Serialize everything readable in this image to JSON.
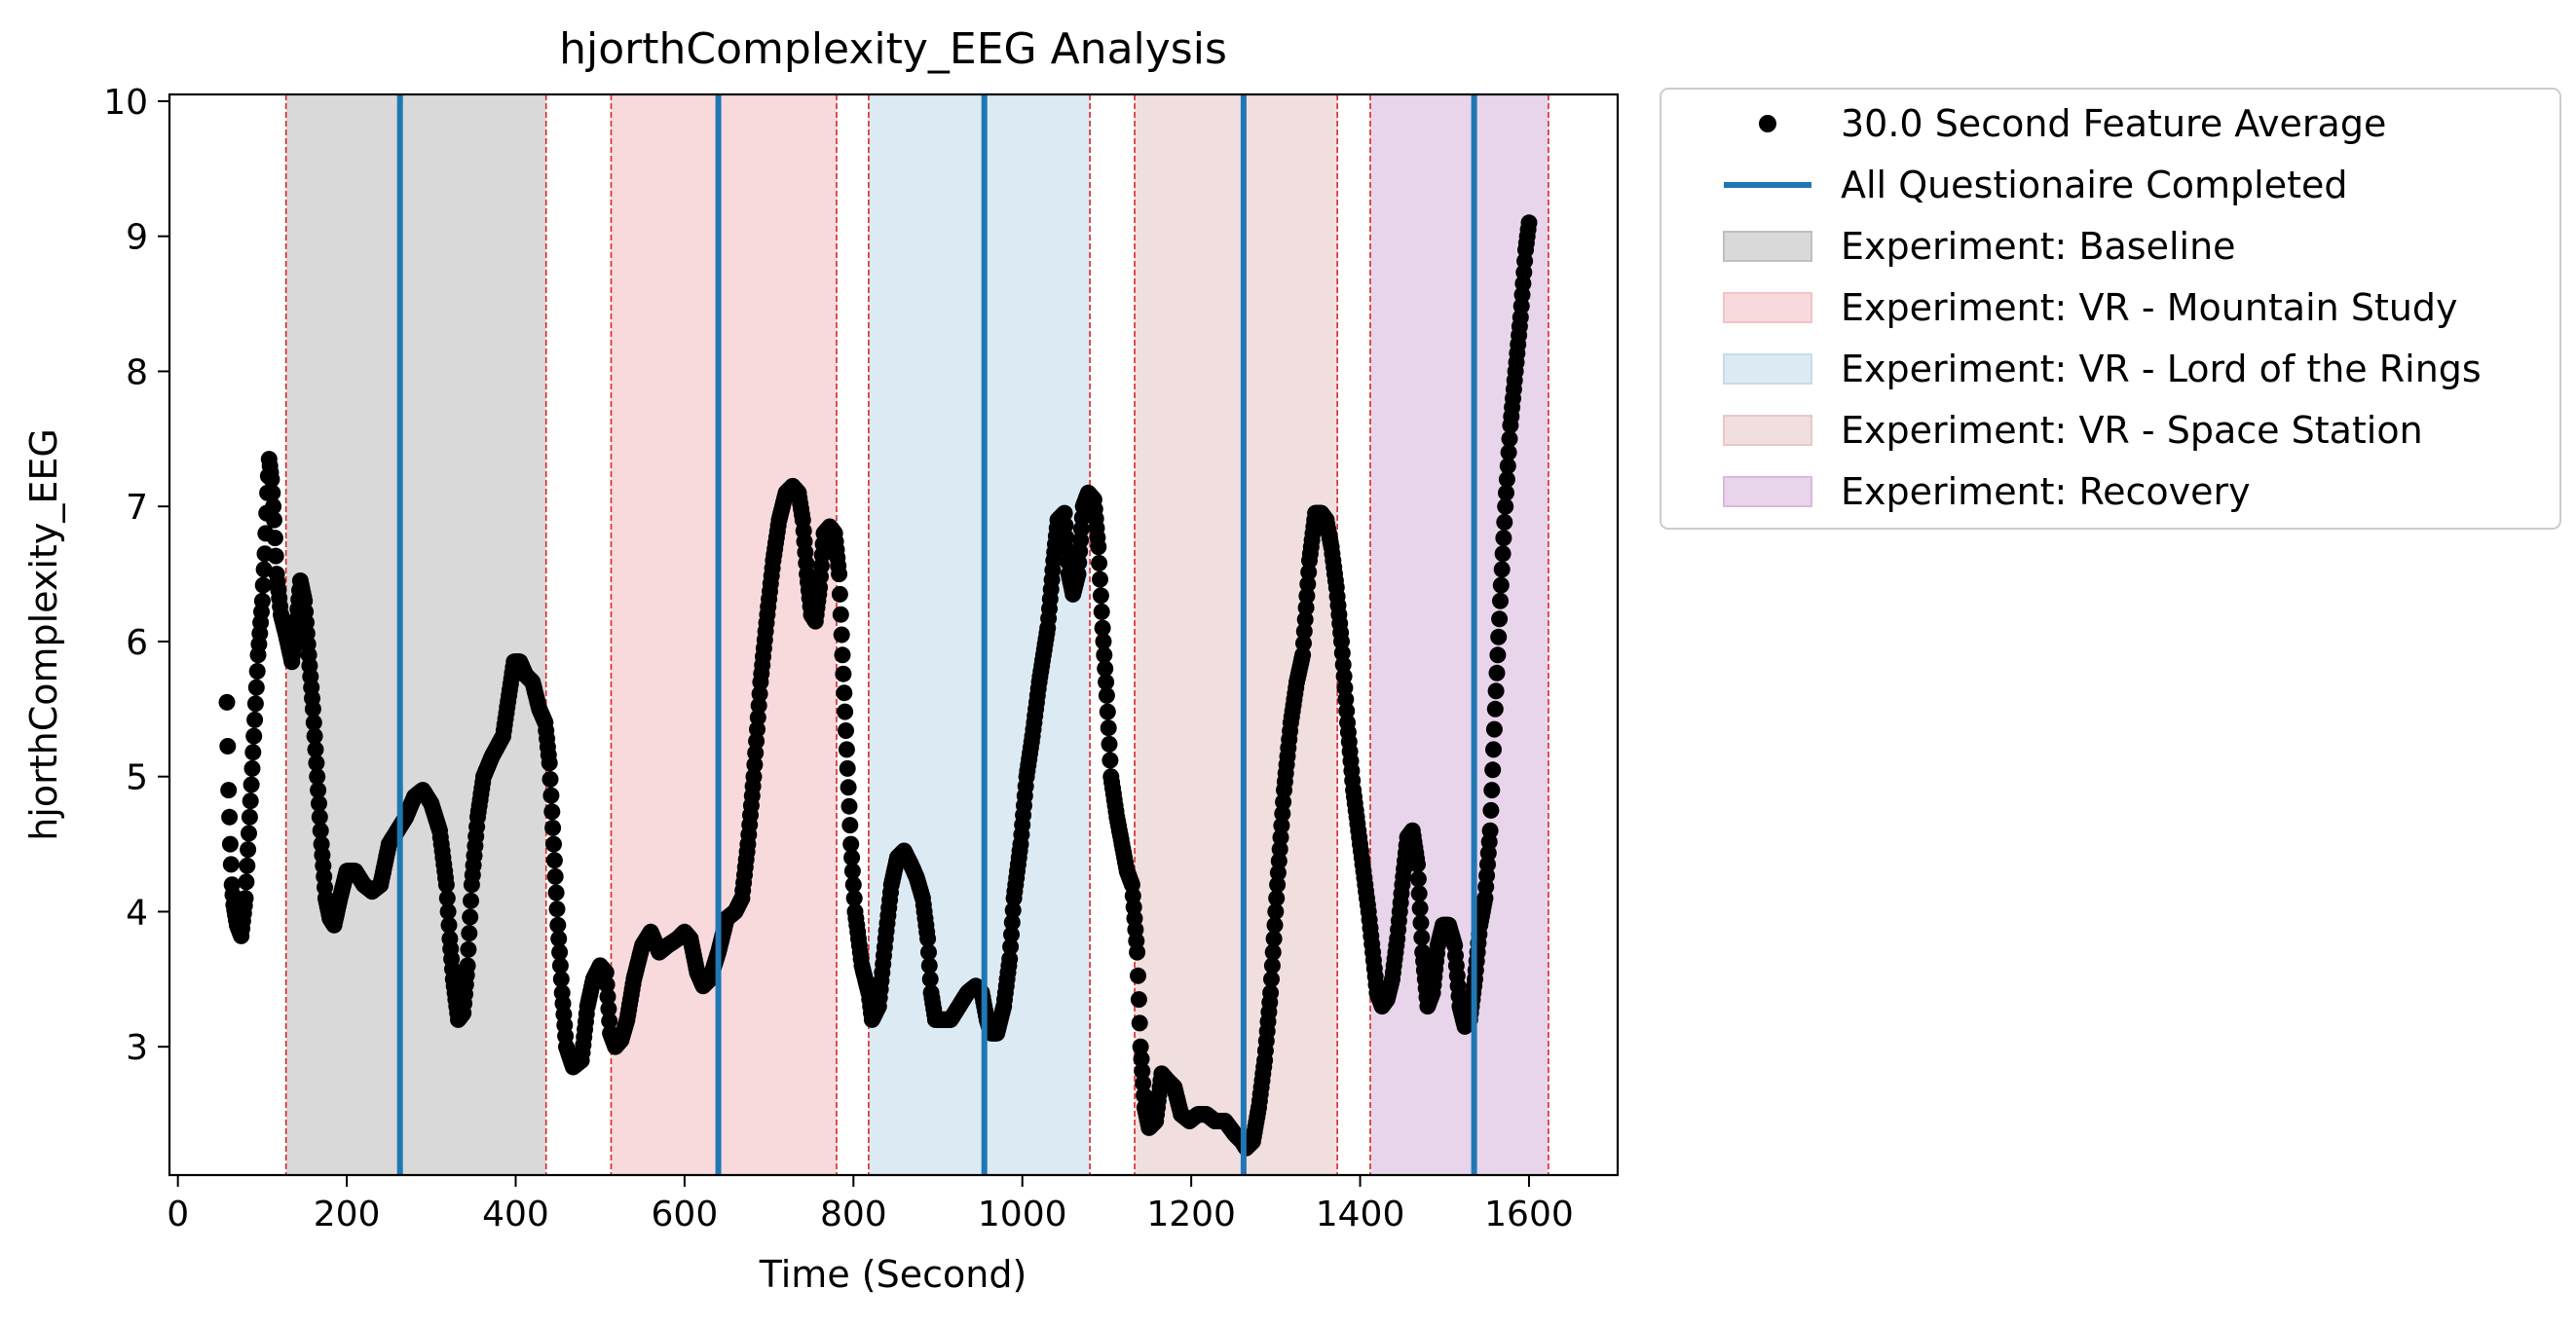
{
  "chart_data": {
    "type": "scatter",
    "title": "hjorthComplexity_EEG Analysis",
    "xlabel": "Time (Second)",
    "ylabel": "hjorthComplexity_EEG",
    "xlim": [
      -10,
      1705
    ],
    "ylim": [
      2.05,
      10.05
    ],
    "xticks": [
      0,
      200,
      400,
      600,
      800,
      1000,
      1200,
      1400,
      1600
    ],
    "yticks": [
      3,
      4,
      5,
      6,
      7,
      8,
      9,
      10
    ],
    "grid": false,
    "legend_position": "outside-top-right",
    "series": [
      {
        "name": "30.0 Second Feature Average",
        "marker": "circle",
        "color": "#000000",
        "anchors": [
          [
            58,
            5.55
          ],
          [
            60,
            4.9
          ],
          [
            62,
            4.5
          ],
          [
            64,
            4.2
          ],
          [
            66,
            4.05
          ],
          [
            70,
            3.9
          ],
          [
            75,
            3.82
          ],
          [
            80,
            4.1
          ],
          [
            85,
            4.7
          ],
          [
            90,
            5.3
          ],
          [
            95,
            5.9
          ],
          [
            100,
            6.3
          ],
          [
            103,
            6.65
          ],
          [
            106,
            7.1
          ],
          [
            108,
            7.35
          ],
          [
            111,
            7.2
          ],
          [
            114,
            6.9
          ],
          [
            117,
            6.5
          ],
          [
            122,
            6.2
          ],
          [
            128,
            6.05
          ],
          [
            135,
            5.85
          ],
          [
            140,
            6.1
          ],
          [
            145,
            6.45
          ],
          [
            150,
            6.3
          ],
          [
            155,
            5.9
          ],
          [
            160,
            5.5
          ],
          [
            165,
            5.0
          ],
          [
            170,
            4.5
          ],
          [
            175,
            4.1
          ],
          [
            180,
            3.95
          ],
          [
            185,
            3.9
          ],
          [
            192,
            4.1
          ],
          [
            200,
            4.3
          ],
          [
            210,
            4.3
          ],
          [
            220,
            4.2
          ],
          [
            230,
            4.15
          ],
          [
            240,
            4.2
          ],
          [
            250,
            4.5
          ],
          [
            260,
            4.6
          ],
          [
            270,
            4.7
          ],
          [
            280,
            4.85
          ],
          [
            290,
            4.9
          ],
          [
            300,
            4.8
          ],
          [
            310,
            4.6
          ],
          [
            318,
            4.2
          ],
          [
            322,
            3.8
          ],
          [
            326,
            3.5
          ],
          [
            332,
            3.2
          ],
          [
            338,
            3.25
          ],
          [
            343,
            3.6
          ],
          [
            348,
            4.2
          ],
          [
            355,
            4.7
          ],
          [
            362,
            5.0
          ],
          [
            372,
            5.15
          ],
          [
            385,
            5.3
          ],
          [
            392,
            5.6
          ],
          [
            398,
            5.85
          ],
          [
            405,
            5.85
          ],
          [
            412,
            5.75
          ],
          [
            420,
            5.7
          ],
          [
            428,
            5.5
          ],
          [
            435,
            5.4
          ],
          [
            440,
            5.1
          ],
          [
            445,
            4.5
          ],
          [
            450,
            3.9
          ],
          [
            455,
            3.4
          ],
          [
            460,
            3.0
          ],
          [
            468,
            2.85
          ],
          [
            478,
            2.9
          ],
          [
            485,
            3.3
          ],
          [
            492,
            3.5
          ],
          [
            500,
            3.6
          ],
          [
            507,
            3.55
          ],
          [
            512,
            3.1
          ],
          [
            518,
            3.0
          ],
          [
            525,
            3.05
          ],
          [
            532,
            3.2
          ],
          [
            540,
            3.5
          ],
          [
            550,
            3.75
          ],
          [
            560,
            3.85
          ],
          [
            570,
            3.7
          ],
          [
            580,
            3.75
          ],
          [
            592,
            3.8
          ],
          [
            600,
            3.85
          ],
          [
            607,
            3.8
          ],
          [
            615,
            3.55
          ],
          [
            622,
            3.45
          ],
          [
            630,
            3.5
          ],
          [
            640,
            3.7
          ],
          [
            650,
            3.95
          ],
          [
            660,
            4.0
          ],
          [
            668,
            4.1
          ],
          [
            675,
            4.5
          ],
          [
            682,
            5.0
          ],
          [
            690,
            5.7
          ],
          [
            698,
            6.2
          ],
          [
            705,
            6.6
          ],
          [
            712,
            6.9
          ],
          [
            720,
            7.1
          ],
          [
            728,
            7.15
          ],
          [
            735,
            7.1
          ],
          [
            740,
            6.9
          ],
          [
            745,
            6.5
          ],
          [
            750,
            6.2
          ],
          [
            755,
            6.15
          ],
          [
            760,
            6.4
          ],
          [
            765,
            6.8
          ],
          [
            772,
            6.85
          ],
          [
            778,
            6.8
          ],
          [
            783,
            6.5
          ],
          [
            787,
            5.9
          ],
          [
            792,
            5.2
          ],
          [
            797,
            4.5
          ],
          [
            802,
            4.0
          ],
          [
            810,
            3.6
          ],
          [
            818,
            3.4
          ],
          [
            822,
            3.2
          ],
          [
            830,
            3.3
          ],
          [
            838,
            3.8
          ],
          [
            845,
            4.2
          ],
          [
            852,
            4.4
          ],
          [
            860,
            4.45
          ],
          [
            868,
            4.35
          ],
          [
            875,
            4.25
          ],
          [
            882,
            4.1
          ],
          [
            888,
            3.8
          ],
          [
            892,
            3.4
          ],
          [
            897,
            3.2
          ],
          [
            905,
            3.2
          ],
          [
            915,
            3.2
          ],
          [
            925,
            3.3
          ],
          [
            935,
            3.4
          ],
          [
            945,
            3.45
          ],
          [
            952,
            3.4
          ],
          [
            958,
            3.2
          ],
          [
            963,
            3.1
          ],
          [
            970,
            3.1
          ],
          [
            978,
            3.3
          ],
          [
            985,
            3.65
          ],
          [
            990,
            4.1
          ],
          [
            998,
            4.5
          ],
          [
            1005,
            5.0
          ],
          [
            1012,
            5.3
          ],
          [
            1020,
            5.7
          ],
          [
            1030,
            6.1
          ],
          [
            1037,
            6.6
          ],
          [
            1042,
            6.9
          ],
          [
            1050,
            6.95
          ],
          [
            1055,
            6.5
          ],
          [
            1060,
            6.35
          ],
          [
            1066,
            6.5
          ],
          [
            1072,
            7.0
          ],
          [
            1078,
            7.1
          ],
          [
            1085,
            7.05
          ],
          [
            1090,
            6.7
          ],
          [
            1095,
            6.1
          ],
          [
            1100,
            5.6
          ],
          [
            1105,
            5.0
          ],
          [
            1112,
            4.7
          ],
          [
            1118,
            4.5
          ],
          [
            1124,
            4.3
          ],
          [
            1130,
            4.2
          ],
          [
            1136,
            3.7
          ],
          [
            1140,
            3.0
          ],
          [
            1145,
            2.55
          ],
          [
            1150,
            2.4
          ],
          [
            1158,
            2.45
          ],
          [
            1165,
            2.8
          ],
          [
            1172,
            2.75
          ],
          [
            1180,
            2.7
          ],
          [
            1188,
            2.5
          ],
          [
            1198,
            2.45
          ],
          [
            1208,
            2.5
          ],
          [
            1218,
            2.5
          ],
          [
            1228,
            2.45
          ],
          [
            1240,
            2.45
          ],
          [
            1252,
            2.35
          ],
          [
            1260,
            2.3
          ],
          [
            1265,
            2.25
          ],
          [
            1273,
            2.3
          ],
          [
            1280,
            2.55
          ],
          [
            1287,
            2.9
          ],
          [
            1294,
            3.4
          ],
          [
            1302,
            4.2
          ],
          [
            1310,
            4.9
          ],
          [
            1318,
            5.4
          ],
          [
            1325,
            5.7
          ],
          [
            1332,
            5.9
          ],
          [
            1340,
            6.6
          ],
          [
            1347,
            6.95
          ],
          [
            1354,
            6.95
          ],
          [
            1360,
            6.9
          ],
          [
            1366,
            6.7
          ],
          [
            1372,
            6.4
          ],
          [
            1378,
            6.0
          ],
          [
            1385,
            5.4
          ],
          [
            1392,
            4.9
          ],
          [
            1398,
            4.6
          ],
          [
            1404,
            4.3
          ],
          [
            1410,
            4.0
          ],
          [
            1415,
            3.7
          ],
          [
            1420,
            3.4
          ],
          [
            1426,
            3.3
          ],
          [
            1432,
            3.35
          ],
          [
            1438,
            3.5
          ],
          [
            1444,
            3.8
          ],
          [
            1450,
            4.2
          ],
          [
            1456,
            4.55
          ],
          [
            1462,
            4.6
          ],
          [
            1468,
            4.35
          ],
          [
            1474,
            3.7
          ],
          [
            1480,
            3.3
          ],
          [
            1486,
            3.4
          ],
          [
            1492,
            3.75
          ],
          [
            1498,
            3.9
          ],
          [
            1505,
            3.9
          ],
          [
            1512,
            3.75
          ],
          [
            1518,
            3.3
          ],
          [
            1524,
            3.15
          ],
          [
            1530,
            3.2
          ],
          [
            1536,
            3.5
          ],
          [
            1542,
            3.9
          ],
          [
            1548,
            4.1
          ],
          [
            1554,
            4.6
          ],
          [
            1560,
            5.5
          ],
          [
            1566,
            6.3
          ],
          [
            1572,
            7.0
          ],
          [
            1578,
            7.6
          ],
          [
            1584,
            8.0
          ],
          [
            1590,
            8.4
          ],
          [
            1596,
            8.9
          ],
          [
            1600,
            9.1
          ]
        ]
      }
    ],
    "vlines": {
      "name": "All Questionaire Completed",
      "color": "#1f77b4",
      "x": [
        263,
        640,
        955,
        1262,
        1535
      ]
    },
    "boundaries": [
      128,
      436,
      513,
      780,
      818,
      1080,
      1133,
      1373,
      1412,
      1623
    ],
    "spans": [
      {
        "name": "Experiment: Baseline",
        "start": 128,
        "end": 436,
        "color": "#bfbfbf"
      },
      {
        "name": "Experiment: VR - Mountain Study",
        "start": 513,
        "end": 780,
        "color": "#f4c2c7"
      },
      {
        "name": "Experiment: VR - Lord of the Rings",
        "start": 818,
        "end": 1080,
        "color": "#c4dcec"
      },
      {
        "name": "Experiment: VR - Space Station",
        "start": 1133,
        "end": 1373,
        "color": "#e8c8c8"
      },
      {
        "name": "Experiment: Recovery",
        "start": 1412,
        "end": 1623,
        "color": "#dbb9dd"
      }
    ]
  }
}
